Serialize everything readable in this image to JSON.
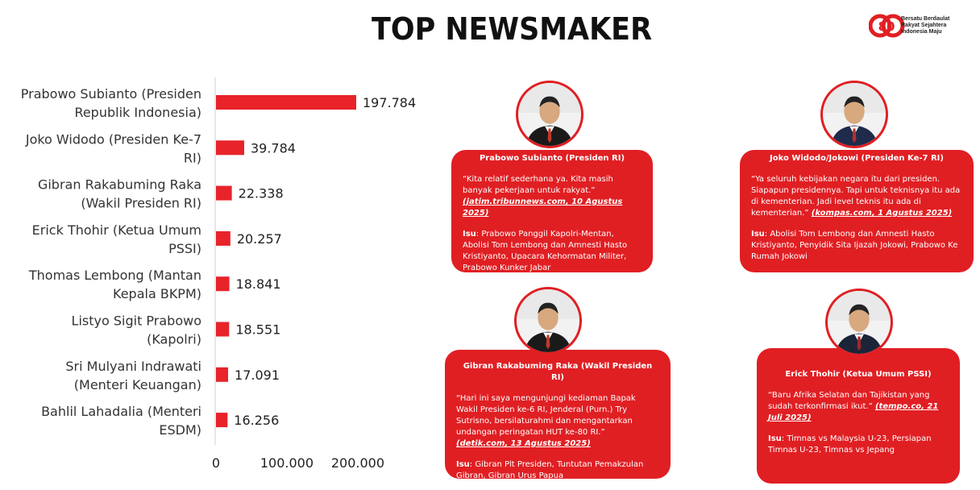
{
  "header": {
    "title": "TOP NEWSMAKER"
  },
  "logo": {
    "number": "80",
    "lines": [
      "Bersatu Berdaulat",
      "Rakyat Sejahtera",
      "Indonesia Maju"
    ]
  },
  "chart_data": {
    "type": "bar",
    "orientation": "horizontal",
    "categories": [
      [
        "Prabowo Subianto (Presiden",
        "Republik Indonesia)"
      ],
      [
        "Joko Widodo (Presiden Ke-7",
        "RI)"
      ],
      [
        "Gibran Rakabuming Raka",
        "(Wakil Presiden RI)"
      ],
      [
        "Erick Thohir (Ketua Umum",
        "PSSI)"
      ],
      [
        "Thomas Lembong (Mantan",
        "Kepala BKPM)"
      ],
      [
        "Listyo Sigit Prabowo",
        "(Kapolri)"
      ],
      [
        "Sri Mulyani Indrawati",
        "(Menteri Keuangan)"
      ],
      [
        "Bahlil Lahadalia (Menteri",
        "ESDM)"
      ]
    ],
    "values": [
      197784,
      39784,
      22338,
      20257,
      18841,
      18551,
      17091,
      16256
    ],
    "value_labels": [
      "197.784",
      "39.784",
      "22.338",
      "20.257",
      "18.841",
      "18.551",
      "17.091",
      "16.256"
    ],
    "xlim": [
      0,
      250000
    ],
    "ticks": [
      0,
      100000,
      200000
    ],
    "tick_labels": [
      "0",
      "100.000",
      "200.000"
    ],
    "grid": false,
    "bar_color": "#e8232a"
  },
  "cards": [
    {
      "name": "Prabowo Subianto (Presiden RI)",
      "quote": "“Kita relatif sederhana ya. Kita masih banyak pekerjaan untuk rakyat.”",
      "source": "(jatim.tribunnews.com, 10 Agustus 2025)",
      "isu_label": "Isu",
      "isu": ": Prabowo Panggil Kapolri-Mentan, Abolisi Tom Lembong dan Amnesti Hasto Kristiyanto, Upacara Kehormatan Militer, Prabowo Kunker Jabar",
      "suit": "#1a1a1a",
      "tie": "#c0392b"
    },
    {
      "name": "Joko Widodo/Jokowi  (Presiden Ke-7 RI)",
      "quote": "“Ya seluruh kebijakan negara itu dari presiden. Siapapun presidennya. Tapi untuk teknisnya itu ada di kementerian. Jadi level teknis itu ada di kementerian.”",
      "source": "(kompas.com, 1 Agustus 2025)",
      "isu_label": "Isu",
      "isu": ": Abolisi Tom Lembong dan Amnesti Hasto Kristiyanto, Penyidik Sita Ijazah Jokowi, Prabowo Ke Rumah Jokowi",
      "suit": "#1e2b4a",
      "tie": "#b03030"
    },
    {
      "name": "Gibran Rakabuming Raka (Wakil Presiden RI)",
      "quote": "“Hari ini saya mengunjungi kediaman Bapak Wakil Presiden ke-6 RI, Jenderal (Purn.) Try Sutrisno, bersilaturahmi dan mengantarkan undangan peringatan HUT ke-80 RI.”",
      "source": "(detik.com, 13 Agustus 2025)",
      "isu_label": "Isu",
      "isu": ": Gibran Plt Presiden, Tuntutan Pemakzulan Gibran, Gibran Urus Papua",
      "suit": "#1a1a1a",
      "tie": "#c0392b"
    },
    {
      "name": "Erick Thohir (Ketua Umum PSSI)",
      "quote": "“Baru Afrika Selatan dan Tajikistan yang sudah terkonfirmasi ikut.”",
      "source": "(tempo.co, 21 Juli 2025)",
      "isu_label": "Isu",
      "isu": ": Timnas vs Malaysia U-23, Persiapan Timnas U-23, Timnas vs Jepang",
      "suit": "#1c2438",
      "tie": "#a02828"
    }
  ]
}
